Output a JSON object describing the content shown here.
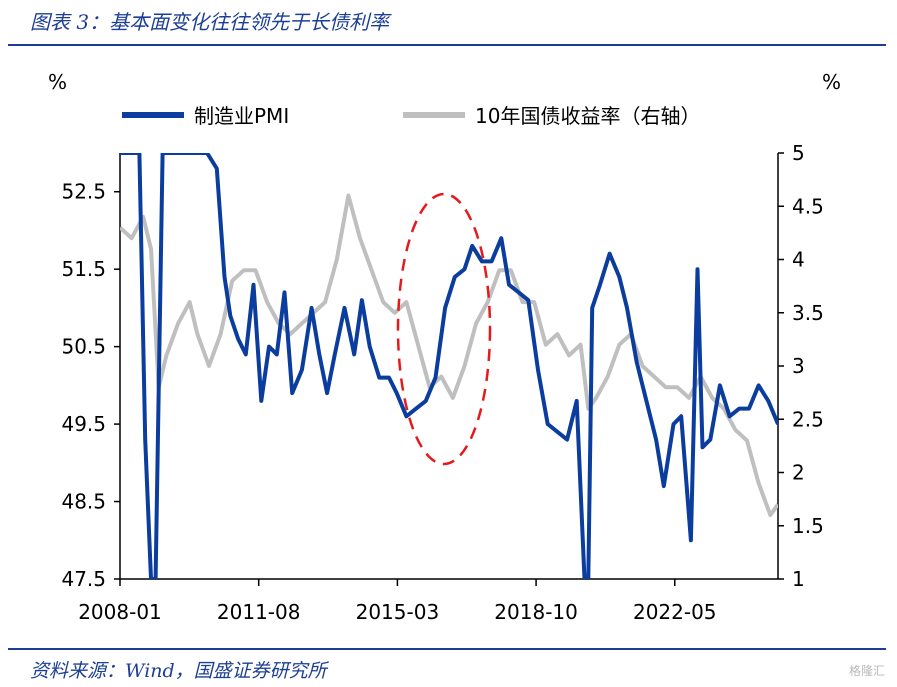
{
  "header": {
    "title": "图表 3：基本面变化往往领先于长债利率"
  },
  "footer": {
    "source": "资料来源：Wind，国盛证券研究所",
    "watermark": "格隆汇"
  },
  "colors": {
    "pmi": "#0b3d9e",
    "yield": "#bfbfbf",
    "annotation": "#e41a1c",
    "title": "#1c3f94"
  },
  "chart_data": {
    "type": "line",
    "left_unit": "%",
    "right_unit": "%",
    "x_tick_labels": [
      "2008-01",
      "2011-08",
      "2015-03",
      "2018-10",
      "2022-05"
    ],
    "left_axis": {
      "min": 47.5,
      "max": 53.0,
      "ticks": [
        "47.5",
        "48.5",
        "49.5",
        "50.5",
        "51.5",
        "52.5"
      ]
    },
    "right_axis": {
      "min": 1,
      "max": 5,
      "ticks": [
        "1",
        "1.5",
        "2",
        "2.5",
        "3",
        "3.5",
        "4",
        "4.5",
        "5"
      ]
    },
    "series": [
      {
        "name": "制造业PMI",
        "axis": "left",
        "t": [
          2008.0,
          2008.15,
          2008.3,
          2008.5,
          2008.65,
          2008.8,
          2008.92,
          2009.1,
          2009.3,
          2009.55,
          2009.8,
          2010.05,
          2010.25,
          2010.5,
          2010.7,
          2010.85,
          2011.05,
          2011.25,
          2011.45,
          2011.65,
          2011.85,
          2012.05,
          2012.25,
          2012.45,
          2012.7,
          2012.95,
          2013.15,
          2013.35,
          2013.55,
          2013.8,
          2014.05,
          2014.25,
          2014.45,
          2014.7,
          2014.95,
          2015.15,
          2015.4,
          2015.65,
          2015.9,
          2016.15,
          2016.4,
          2016.65,
          2016.9,
          2017.1,
          2017.35,
          2017.6,
          2017.85,
          2018.05,
          2018.3,
          2018.55,
          2018.8,
          2019.05,
          2019.3,
          2019.55,
          2019.8,
          2020.0,
          2020.1,
          2020.2,
          2020.4,
          2020.65,
          2020.9,
          2021.1,
          2021.35,
          2021.6,
          2021.85,
          2022.05,
          2022.3,
          2022.5,
          2022.75,
          2022.92,
          2023.05,
          2023.25,
          2023.5,
          2023.75,
          2024.0,
          2024.25,
          2024.5,
          2024.75,
          2025.0
        ],
        "values": [
          53.0,
          53.0,
          53.0,
          53.0,
          49.3,
          47.5,
          47.5,
          53.0,
          53.0,
          53.0,
          53.0,
          53.0,
          53.0,
          52.8,
          51.4,
          50.9,
          50.6,
          50.4,
          51.3,
          49.8,
          50.5,
          50.4,
          51.2,
          49.9,
          50.2,
          51.0,
          50.4,
          49.9,
          50.4,
          51.0,
          50.4,
          51.1,
          50.5,
          50.1,
          50.1,
          49.9,
          49.6,
          49.7,
          49.8,
          50.1,
          51.0,
          51.4,
          51.5,
          51.8,
          51.6,
          51.6,
          51.9,
          51.3,
          51.2,
          51.1,
          50.2,
          49.5,
          49.4,
          49.3,
          49.8,
          47.5,
          47.5,
          51.0,
          51.3,
          51.7,
          51.4,
          51.0,
          50.3,
          49.8,
          49.3,
          48.7,
          49.5,
          49.6,
          48.0,
          51.5,
          49.2,
          49.3,
          50.0,
          49.6,
          49.7,
          49.7,
          50.0,
          49.8,
          49.5
        ]
      },
      {
        "name": "10年国债收益率（右轴）",
        "axis": "right",
        "t": [
          2008.0,
          2008.3,
          2008.6,
          2008.8,
          2009.0,
          2009.2,
          2009.5,
          2009.8,
          2010.0,
          2010.3,
          2010.6,
          2010.9,
          2011.2,
          2011.5,
          2011.8,
          2012.1,
          2012.4,
          2012.7,
          2013.0,
          2013.3,
          2013.6,
          2013.9,
          2014.2,
          2014.5,
          2014.8,
          2015.1,
          2015.4,
          2015.7,
          2016.0,
          2016.3,
          2016.6,
          2016.9,
          2017.2,
          2017.5,
          2017.8,
          2018.1,
          2018.4,
          2018.7,
          2019.0,
          2019.3,
          2019.6,
          2019.9,
          2020.1,
          2020.3,
          2020.6,
          2020.9,
          2021.2,
          2021.5,
          2021.8,
          2022.1,
          2022.4,
          2022.7,
          2023.0,
          2023.3,
          2023.6,
          2023.9,
          2024.2,
          2024.5,
          2024.8,
          2025.0
        ],
        "values": [
          4.3,
          4.2,
          4.4,
          4.1,
          2.8,
          3.1,
          3.4,
          3.6,
          3.3,
          3.0,
          3.3,
          3.8,
          3.9,
          3.9,
          3.6,
          3.4,
          3.3,
          3.4,
          3.5,
          3.6,
          4.0,
          4.6,
          4.2,
          3.9,
          3.6,
          3.5,
          3.6,
          3.2,
          2.8,
          2.9,
          2.7,
          3.0,
          3.4,
          3.6,
          3.9,
          3.9,
          3.6,
          3.6,
          3.2,
          3.3,
          3.1,
          3.2,
          2.6,
          2.7,
          2.9,
          3.2,
          3.3,
          3.0,
          2.9,
          2.8,
          2.8,
          2.7,
          2.9,
          2.7,
          2.6,
          2.4,
          2.3,
          1.9,
          1.6,
          1.7
        ]
      }
    ],
    "annotation": {
      "shape": "dashed-ellipse",
      "around": "2015-2017"
    }
  }
}
